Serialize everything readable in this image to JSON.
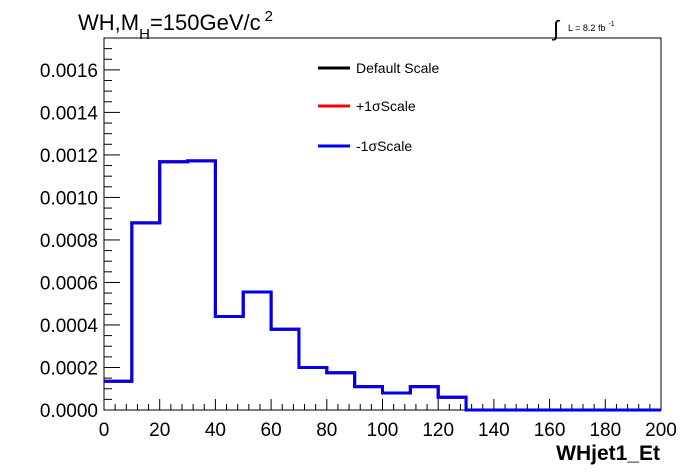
{
  "header": {
    "title_main": "WH,M",
    "title_sub": "H",
    "title_rest": "=150GeV/c",
    "title_sup": "2",
    "lumi_integral": "∫",
    "lumi_text": "L = 8.2 fb",
    "lumi_sup": "-1"
  },
  "chart_data": {
    "type": "line",
    "style": "step-histogram",
    "xlabel": "WHjet1_Et",
    "ylabel": "",
    "xlim": [
      0,
      200
    ],
    "ylim": [
      0,
      0.00175
    ],
    "x_ticks": [
      0,
      20,
      40,
      60,
      80,
      100,
      120,
      140,
      160,
      180,
      200
    ],
    "y_ticks": [
      "0.0000",
      "0.0002",
      "0.0004",
      "0.0006",
      "0.0008",
      "0.0010",
      "0.0012",
      "0.0014",
      "0.0016"
    ],
    "grid": false,
    "legend_position": "top-center",
    "bin_edges": [
      0,
      10,
      20,
      30,
      40,
      50,
      60,
      70,
      80,
      90,
      100,
      110,
      120,
      130,
      140,
      150,
      160,
      170,
      180,
      190,
      200
    ],
    "series": [
      {
        "name": "Default Scale",
        "color": "#000000",
        "values": [
          0.000135,
          0.00088,
          0.001168,
          0.001172,
          0.00044,
          0.000555,
          0.00038,
          0.0002,
          0.000175,
          0.00011,
          8e-05,
          0.00011,
          6e-05,
          0,
          0,
          0,
          0,
          0,
          0,
          0
        ]
      },
      {
        "name": "+1σScale",
        "color": "#ff0000",
        "values": [
          0.000135,
          0.00088,
          0.001168,
          0.001172,
          0.00044,
          0.000555,
          0.00038,
          0.0002,
          0.000175,
          0.00011,
          8e-05,
          0.00011,
          6e-05,
          0,
          0,
          0,
          0,
          0,
          0,
          0
        ]
      },
      {
        "name": "-1σScale",
        "color": "#0000ee",
        "values": [
          0.000135,
          0.00088,
          0.001168,
          0.001172,
          0.00044,
          0.000555,
          0.00038,
          0.0002,
          0.000175,
          0.00011,
          8e-05,
          0.00011,
          6e-05,
          0,
          0,
          0,
          0,
          0,
          0,
          0
        ]
      }
    ]
  }
}
